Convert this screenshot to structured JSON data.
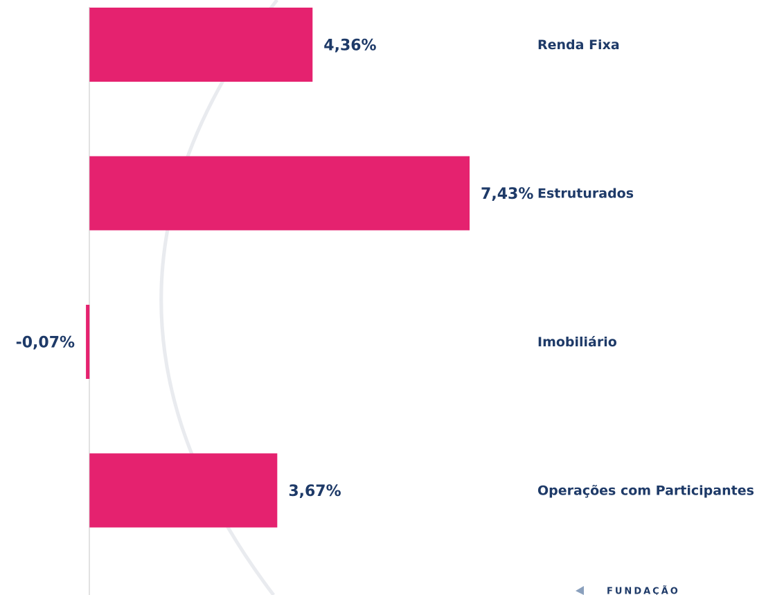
{
  "chart_data": {
    "type": "bar",
    "orientation": "horizontal",
    "categories": [
      "Renda Fixa",
      "Estruturados",
      "Imobiliário",
      "Operações com Participantes"
    ],
    "values": [
      4.36,
      7.43,
      -0.07,
      3.67
    ],
    "value_labels": [
      "4,36%",
      "7,43%",
      "-0,07%",
      "3,67%"
    ],
    "color": "#e5226f",
    "xlim": [
      -1.75,
      13.4
    ]
  },
  "logo_text": "FUNDAÇÃO"
}
